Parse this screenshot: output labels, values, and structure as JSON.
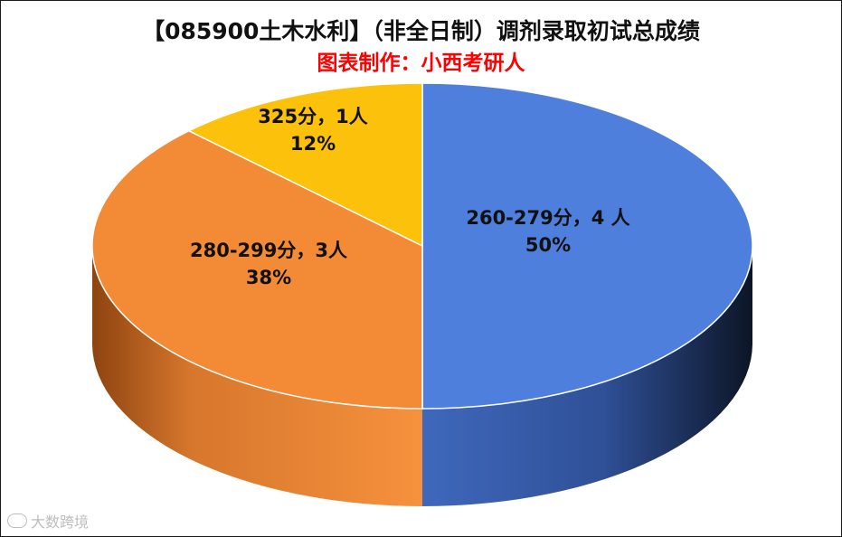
{
  "chart_data": {
    "type": "pie",
    "title": "【085900土木水利】（非全日制）调剂录取初试总成绩",
    "subtitle": "图表制作：小西考研人",
    "series": [
      {
        "value": 4,
        "percent": 50,
        "label_line1": "260-279分，4 人",
        "label_line2": "50%",
        "color": "#4f7fdd"
      },
      {
        "value": 3,
        "percent": 38,
        "label_line1": "280-299分，3人",
        "label_line2": "38%",
        "color": "#f28a36"
      },
      {
        "value": 1,
        "percent": 12,
        "label_line1": "325分，1人",
        "label_line2": "12%",
        "color": "#fcc10a"
      }
    ],
    "style": "3d-pie"
  },
  "colors": {
    "subtitle": "#ff0000"
  },
  "watermark": "大数跨境"
}
